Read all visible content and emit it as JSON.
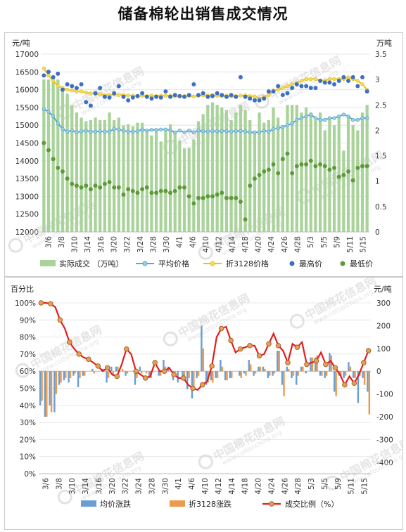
{
  "title": "储备棉轮出销售成交情况",
  "watermark": {
    "cn": "中国棉花信息网",
    "en": "www.cottonchina.org"
  },
  "chart_data": [
    {
      "type": "bar+line",
      "left_unit": "元/吨",
      "right_unit": "万吨",
      "ylim_left": [
        12000,
        17000
      ],
      "yticks_left": [
        "17000",
        "16500",
        "16000",
        "15500",
        "15000",
        "14500",
        "14000",
        "13500",
        "13000",
        "12500",
        "12000"
      ],
      "ylim_right": [
        0,
        3.5
      ],
      "yticks_right": [
        "3.5",
        "3",
        "2.5",
        "2",
        "1.5",
        "1",
        "0.5",
        "0"
      ],
      "x_tick_labels": [
        "3/6",
        "3/8",
        "3/10",
        "3/14",
        "3/16",
        "3/20",
        "3/22",
        "3/24",
        "3/28",
        "3/30",
        "4/1",
        "4/6",
        "4/10",
        "4/12",
        "4/14",
        "4/18",
        "4/20",
        "4/24",
        "4/26",
        "4/28",
        "5/3",
        "5/5",
        "5/9",
        "5/11",
        "5/15"
      ],
      "legend": [
        "实际成交 （万吨）",
        "平均价格",
        "折3128价格",
        "最高价",
        "最低价"
      ],
      "series": [
        {
          "name": "实际成交 （万吨）",
          "kind": "bar",
          "axis": "right",
          "values": [
            3.0,
            3.0,
            2.95,
            3.0,
            2.8,
            2.72,
            2.5,
            2.35,
            2.25,
            2.18,
            2.2,
            2.25,
            2.2,
            2.2,
            2.35,
            2.2,
            2.25,
            2.1,
            2.12,
            2.08,
            2.15,
            2.15,
            1.98,
            1.9,
            2.02,
            1.78,
            2.05,
            2.12,
            1.95,
            1.8,
            1.65,
            1.65,
            1.82,
            2.18,
            2.32,
            2.5,
            2.55,
            2.5,
            2.45,
            2.4,
            2.2,
            2.35,
            2.5,
            2.4,
            2.2,
            1.98,
            2.35,
            2.15,
            2.2,
            2.45,
            2.25,
            2.1,
            2.5,
            2.5,
            2.5,
            2.35,
            2.45,
            2.35,
            2.2,
            2.35,
            2.0,
            2.25,
            2.1,
            2.3,
            1.6,
            2.25,
            2.1,
            2.0,
            2.35,
            2.5
          ]
        },
        {
          "name": "平均价格",
          "kind": "line",
          "axis": "left",
          "values": [
            15450,
            15380,
            15250,
            15050,
            14900,
            14820,
            14850,
            14800,
            14830,
            14850,
            14820,
            14820,
            14830,
            14820,
            14820,
            14900,
            14880,
            14850,
            14820,
            14820,
            14830,
            14880,
            14850,
            14870,
            14870,
            14880,
            14880,
            14860,
            14800,
            14850,
            14800,
            14850,
            14800,
            14850,
            14830,
            14820,
            14840,
            14830,
            14840,
            14830,
            14820,
            14840,
            14840,
            14830,
            14800,
            14800,
            14800,
            14850,
            14820,
            14900,
            14920,
            14950,
            15000,
            15050,
            15150,
            15200,
            15250,
            15300,
            15200,
            15150,
            15150,
            15200,
            15200,
            15250,
            15300,
            15250,
            15150,
            15150,
            15200,
            15200
          ]
        },
        {
          "name": "折3128价格",
          "kind": "line",
          "axis": "left",
          "values": [
            16600,
            16400,
            16250,
            16100,
            16050,
            16000,
            15980,
            15950,
            15950,
            15920,
            15900,
            15880,
            15870,
            15850,
            15850,
            15870,
            15850,
            15850,
            15840,
            15830,
            15820,
            15830,
            15820,
            15830,
            15820,
            15830,
            15830,
            15830,
            15810,
            15820,
            15820,
            15820,
            15810,
            15830,
            15840,
            15840,
            15850,
            15830,
            15820,
            15830,
            15810,
            15820,
            15830,
            15840,
            15820,
            15810,
            15750,
            15800,
            15850,
            15980,
            16000,
            16050,
            16100,
            16150,
            16200,
            16250,
            16300,
            16300,
            16300,
            16250,
            16250,
            16300,
            16300,
            16300,
            16300,
            16350,
            16300,
            16250,
            16150,
            16000
          ]
        },
        {
          "name": "最高价",
          "kind": "scatter",
          "axis": "left",
          "values": [
            16400,
            16500,
            16350,
            16450,
            16000,
            16150,
            16100,
            16050,
            16150,
            15650,
            15550,
            15900,
            16050,
            15800,
            15780,
            15900,
            16100,
            15800,
            15700,
            15780,
            15820,
            15900,
            15800,
            15750,
            15800,
            15780,
            15950,
            15800,
            15850,
            15820,
            15800,
            15850,
            16150,
            15850,
            15900,
            15800,
            15820,
            15900,
            15850,
            15800,
            15850,
            15800,
            16350,
            15800,
            15750,
            15700,
            15700,
            15750,
            15950,
            15950,
            16100,
            15850,
            15900,
            16050,
            16150,
            16100,
            16100,
            16050,
            16050,
            16250,
            16200,
            16200,
            16150,
            16250,
            16350,
            16250,
            16350,
            16100,
            16350,
            15950
          ]
        },
        {
          "name": "最低价",
          "kind": "scatter",
          "axis": "left",
          "values": [
            14500,
            14300,
            14050,
            13800,
            13700,
            13500,
            13350,
            13300,
            13250,
            13300,
            13200,
            13300,
            13250,
            13350,
            13400,
            13250,
            13250,
            13050,
            13200,
            13150,
            13100,
            13200,
            13250,
            13100,
            13100,
            13150,
            13150,
            13100,
            13150,
            13250,
            13250,
            13000,
            12800,
            12950,
            12950,
            13000,
            13000,
            13050,
            13100,
            12950,
            12950,
            12950,
            12850,
            12350,
            13300,
            13500,
            13600,
            13700,
            13750,
            13900,
            13650,
            14050,
            14200,
            13650,
            13850,
            13900,
            13900,
            14000,
            13850,
            13900,
            13850,
            13750,
            13800,
            13550,
            13600,
            13700,
            13450,
            13800,
            13850,
            13850
          ]
        }
      ]
    },
    {
      "type": "bar+line",
      "left_unit": "百分比",
      "right_unit": "元/吨",
      "ylim_left": [
        0,
        100
      ],
      "yticks_left": [
        "100%",
        "90%",
        "80%",
        "70%",
        "60%",
        "50%",
        "40%",
        "30%",
        "20%",
        "10%",
        "0%"
      ],
      "ylim_right": [
        -450,
        300
      ],
      "yticks_right": [
        "300",
        "200",
        "100",
        "0",
        "-100",
        "-200",
        "-300",
        "-400"
      ],
      "x_tick_labels": [
        "3/6",
        "3/8",
        "3/10",
        "3/14",
        "3/16",
        "3/20",
        "3/22",
        "3/24",
        "3/28",
        "3/30",
        "4/1",
        "4/6",
        "4/10",
        "4/12",
        "4/14",
        "4/18",
        "4/20",
        "4/24",
        "4/26",
        "4/28",
        "5/3",
        "5/5",
        "5/9",
        "5/11",
        "5/15"
      ],
      "legend": [
        "均价涨跌",
        "折3128涨跌",
        "成交比例（%）"
      ],
      "series": [
        {
          "name": "均价涨跌",
          "kind": "bar",
          "axis": "right",
          "values": [
            -150,
            -200,
            -150,
            -180,
            -60,
            -40,
            -50,
            -20,
            -70,
            -20,
            0,
            10,
            0,
            10,
            -50,
            20,
            20,
            0,
            -20,
            0,
            -60,
            20,
            0,
            -30,
            0,
            -20,
            50,
            20,
            -40,
            -50,
            -20,
            -80,
            -120,
            -30,
            200,
            -60,
            -40,
            -30,
            50,
            -40,
            -30,
            0,
            -20,
            -10,
            50,
            -20,
            20,
            20,
            -30,
            -20,
            90,
            -60,
            20,
            -30,
            -60,
            20,
            -10,
            60,
            60,
            -20,
            -30,
            80,
            -90,
            -20,
            -30,
            40,
            -30,
            -140,
            -30,
            -90
          ]
        },
        {
          "name": "折3128涨跌",
          "kind": "bar",
          "axis": "right",
          "values": [
            -130,
            -200,
            -180,
            -100,
            -50,
            -30,
            -30,
            -10,
            -30,
            -20,
            0,
            -10,
            0,
            10,
            -30,
            -20,
            20,
            10,
            -10,
            0,
            -30,
            -10,
            -10,
            -30,
            0,
            -20,
            20,
            0,
            -20,
            0,
            -30,
            -30,
            -70,
            -20,
            100,
            -50,
            -50,
            -30,
            20,
            -40,
            -30,
            0,
            -30,
            -20,
            30,
            -10,
            20,
            10,
            -20,
            -10,
            90,
            -110,
            10,
            -20,
            -20,
            20,
            0,
            60,
            70,
            -20,
            -20,
            70,
            -110,
            -20,
            -20,
            20,
            -30,
            -20,
            -60,
            -190
          ]
        },
        {
          "name": "成交比例（%）",
          "kind": "line",
          "axis": "left",
          "values": [
            100,
            100,
            99.5,
            97.5,
            90,
            85,
            77,
            73,
            70,
            68,
            67,
            65,
            63,
            60,
            62,
            58,
            57,
            64,
            73,
            70,
            60,
            58,
            56,
            57,
            65,
            60,
            60,
            62,
            58,
            56,
            56,
            52,
            50,
            49,
            52,
            54,
            63,
            80,
            85,
            86,
            78,
            71,
            73,
            74,
            75,
            75,
            69,
            70,
            76,
            82,
            75,
            72,
            65,
            76,
            74,
            77,
            64,
            65,
            66,
            71,
            64,
            66,
            62,
            58,
            52,
            57,
            53,
            58,
            65,
            72
          ]
        }
      ]
    }
  ]
}
